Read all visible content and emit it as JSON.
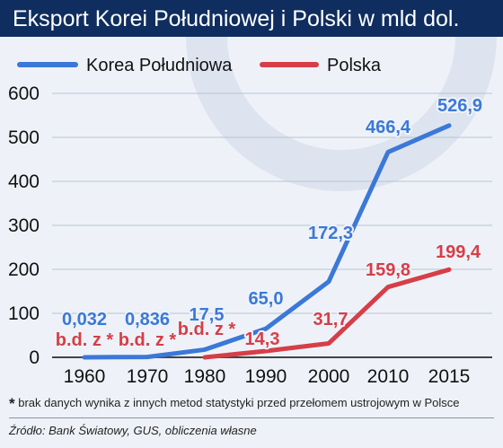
{
  "chart_data": {
    "type": "line",
    "title": "Eksport Korei Południowej i Polski w mld dol.",
    "categories": [
      "1960",
      "1970",
      "1980",
      "1990",
      "2000",
      "2010",
      "2015"
    ],
    "x_ticks": [
      "1960",
      "1970",
      "1980",
      "1990",
      "2000",
      "2010",
      "2015"
    ],
    "y_ticks": [
      "0",
      "100",
      "200",
      "300",
      "400",
      "500",
      "600"
    ],
    "ylim": [
      0,
      600
    ],
    "grid": "horizontal",
    "legend": "top-left",
    "series": [
      {
        "name": "Korea Południowa",
        "color": "#3b78d8",
        "values": [
          0.032,
          0.836,
          17.5,
          65.0,
          172.3,
          466.4,
          526.9
        ],
        "labels": [
          "0,032",
          "0,836",
          "17,5",
          "65,0",
          "172,3",
          "466,4",
          "526,9"
        ]
      },
      {
        "name": "Polska",
        "color": "#d63e48",
        "values": [
          null,
          null,
          null,
          14.3,
          31.7,
          159.8,
          199.4
        ],
        "labels": [
          "b.d. z *",
          "b.d. z *",
          "b.d. z *",
          "14,3",
          "31,7",
          "159,8",
          "199,4"
        ]
      }
    ]
  },
  "footnote": {
    "marker": "*",
    "text": " brak danych wynika z innych metod statystyki przed przełomem ustrojowym w Polsce"
  },
  "source": "Źródło: Bank Światowy, GUS, obliczenia własne",
  "colors": {
    "title_bar": "#0f2e5f",
    "background": "#eef2f8",
    "korea": "#3b78d8",
    "polska": "#d63e48"
  }
}
